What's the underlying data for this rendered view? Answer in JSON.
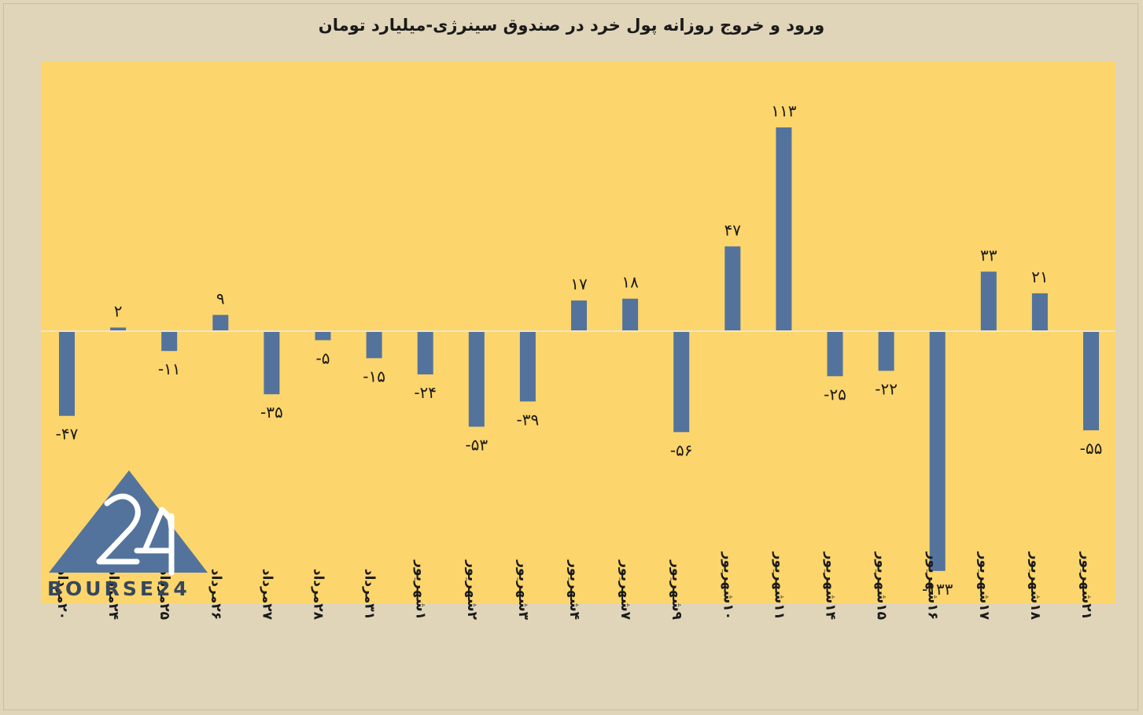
{
  "title": "ورود و خروج روزانه پول خرد در صندوق سینرژی-میلیارد تومان",
  "logo_text": "BOURSE24",
  "colors": {
    "background": "#e0d5b9",
    "plot_area": "#fcd56c",
    "bar": "#53739c",
    "baseline": "#efe6cc",
    "logo": "#53739c"
  },
  "chart_data": {
    "type": "bar",
    "title": "ورود و خروج روزانه پول خرد در صندوق سینرژی-میلیارد تومان",
    "xlabel": "",
    "ylabel": "",
    "grid": false,
    "legend": "none",
    "ylim": [
      -140,
      140
    ],
    "categories": [
      "۲۰مرداد",
      "۲۴مرداد",
      "۲۵مرداد",
      "۲۶مرداد",
      "۲۷مرداد",
      "۲۸مرداد",
      "۳۱مرداد",
      "۱شهریور",
      "۲شهریور",
      "۳شهریور",
      "۴شهریور",
      "۷شهریور",
      "۹شهریور",
      "۱۰شهریور",
      "۱۱شهریور",
      "۱۴شهریور",
      "۱۵شهریور",
      "۱۶شهریور",
      "۱۷شهریور",
      "۱۸شهریور",
      "۲۱شهریور"
    ],
    "values": [
      -47,
      2,
      -11,
      9,
      -35,
      -5,
      -15,
      -24,
      -53,
      -39,
      17,
      18,
      -56,
      47,
      113,
      -25,
      -22,
      -133,
      33,
      21,
      -55
    ],
    "data_labels": [
      "-۴۷",
      "۲",
      "-۱۱",
      "۹",
      "-۳۵",
      "-۵",
      "-۱۵",
      "-۲۴",
      "-۵۳",
      "-۳۹",
      "۱۷",
      "۱۸",
      "-۵۶",
      "۴۷",
      "۱۱۳",
      "-۲۵",
      "-۲۲",
      "-۱۳۳",
      "۳۳",
      "۲۱",
      "-۵۵"
    ]
  }
}
